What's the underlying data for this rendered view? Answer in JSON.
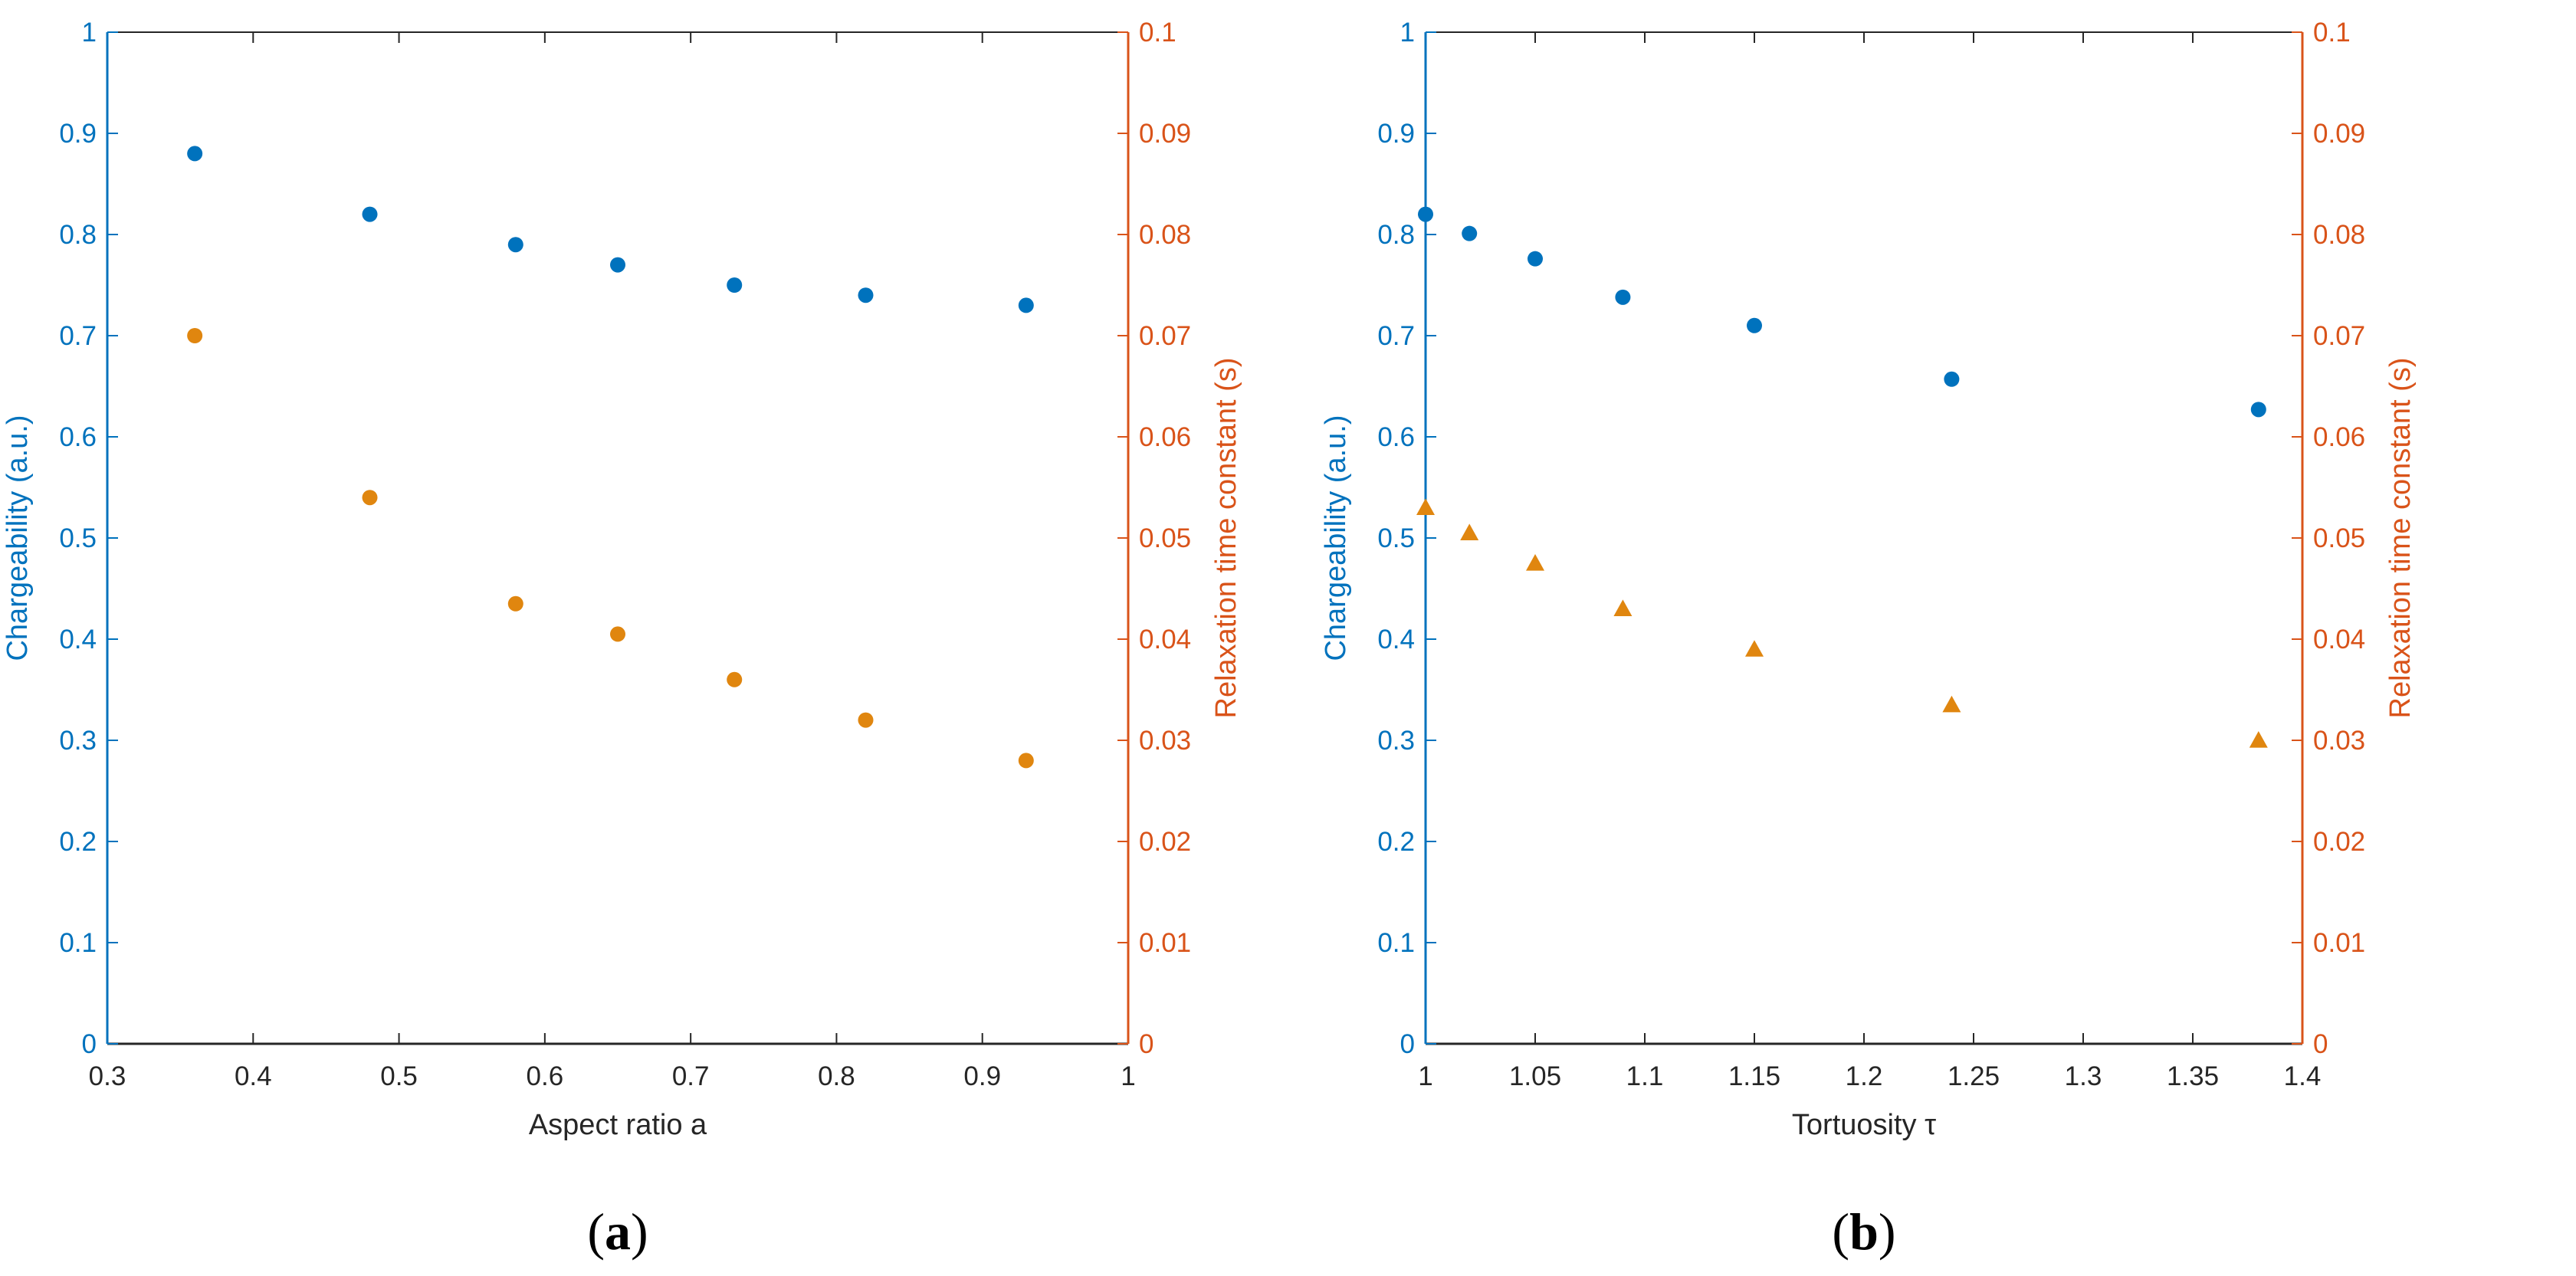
{
  "colors": {
    "left_axis": "#0072BD",
    "right_axis": "#D95319",
    "series_blue": "#0072BD",
    "series_orange": "#E0860F",
    "frame": "#262626"
  },
  "chart_data": [
    {
      "type": "scatter",
      "panel_label": {
        "open": "(",
        "letter": "a",
        "close": ")"
      },
      "xlabel": "Aspect ratio a",
      "ylabel_left": "Chargeability (a.u.)",
      "ylabel_right": "Relaxation time constant (s)",
      "xlim": [
        0.3,
        1
      ],
      "ylim_left": [
        0,
        1
      ],
      "ylim_right": [
        0,
        0.1
      ],
      "x_ticks": [
        "0.3",
        "0.4",
        "0.5",
        "0.6",
        "0.7",
        "0.8",
        "0.9",
        "1"
      ],
      "y_left_ticks": [
        "0",
        "0.1",
        "0.2",
        "0.3",
        "0.4",
        "0.5",
        "0.6",
        "0.7",
        "0.8",
        "0.9",
        "1"
      ],
      "y_right_ticks": [
        "0",
        "0.01",
        "0.02",
        "0.03",
        "0.04",
        "0.05",
        "0.06",
        "0.07",
        "0.08",
        "0.09",
        "0.1"
      ],
      "series": [
        {
          "name": "Chargeability",
          "axis": "left",
          "marker": "circle",
          "color": "#0072BD",
          "x": [
            0.36,
            0.48,
            0.58,
            0.65,
            0.73,
            0.82,
            0.93
          ],
          "y": [
            0.88,
            0.82,
            0.79,
            0.77,
            0.75,
            0.74,
            0.73
          ]
        },
        {
          "name": "Relaxation time constant",
          "axis": "right",
          "marker": "circle",
          "color": "#E0860F",
          "x": [
            0.36,
            0.48,
            0.58,
            0.65,
            0.73,
            0.82,
            0.93
          ],
          "y": [
            0.07,
            0.054,
            0.0435,
            0.0405,
            0.036,
            0.032,
            0.028
          ]
        }
      ]
    },
    {
      "type": "scatter",
      "panel_label": {
        "open": "(",
        "letter": "b",
        "close": ")"
      },
      "xlabel": "Tortuosity τ",
      "ylabel_left": "Chargeability (a.u.)",
      "ylabel_right": "Relaxation time constant (s)",
      "xlim": [
        1,
        1.4
      ],
      "ylim_left": [
        0,
        1
      ],
      "ylim_right": [
        0,
        0.1
      ],
      "x_ticks": [
        "1",
        "1.05",
        "1.1",
        "1.15",
        "1.2",
        "1.25",
        "1.3",
        "1.35",
        "1.4"
      ],
      "y_left_ticks": [
        "0",
        "0.1",
        "0.2",
        "0.3",
        "0.4",
        "0.5",
        "0.6",
        "0.7",
        "0.8",
        "0.9",
        "1"
      ],
      "y_right_ticks": [
        "0",
        "0.01",
        "0.02",
        "0.03",
        "0.04",
        "0.05",
        "0.06",
        "0.07",
        "0.08",
        "0.09",
        "0.1"
      ],
      "series": [
        {
          "name": "Chargeability",
          "axis": "left",
          "marker": "circle",
          "color": "#0072BD",
          "x": [
            1.0,
            1.02,
            1.05,
            1.09,
            1.15,
            1.24,
            1.38
          ],
          "y": [
            0.82,
            0.801,
            0.776,
            0.738,
            0.71,
            0.657,
            0.627
          ]
        },
        {
          "name": "Relaxation time constant",
          "axis": "right",
          "marker": "triangle",
          "color": "#E0860F",
          "x": [
            1.0,
            1.02,
            1.05,
            1.09,
            1.15,
            1.24,
            1.38
          ],
          "y": [
            0.053,
            0.0505,
            0.0475,
            0.043,
            0.039,
            0.0335,
            0.03
          ]
        }
      ]
    }
  ]
}
